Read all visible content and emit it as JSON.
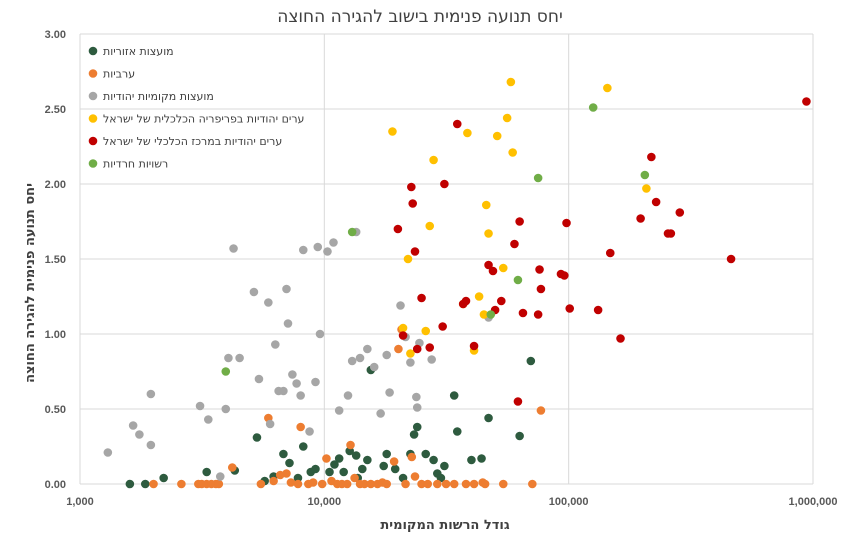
{
  "chart_data": {
    "type": "scatter",
    "title": "יחס תנועה פנימית בישוב להגירה החוצה",
    "xlabel": "גודל הרשות המקומית",
    "ylabel": "יחס תנועה פנימית להגירה החוצה",
    "x_scale": "log",
    "xlim": [
      1000,
      1000000
    ],
    "ylim": [
      0,
      3
    ],
    "x_ticks": [
      1000,
      10000,
      100000,
      1000000
    ],
    "x_tick_labels": [
      "1,000",
      "10,000",
      "100,000",
      "1,000,000"
    ],
    "y_ticks": [
      0,
      0.5,
      1,
      1.5,
      2,
      2.5,
      3
    ],
    "y_tick_labels": [
      "0.00",
      "0.50",
      "1.00",
      "1.50",
      "2.00",
      "2.50",
      "3.00"
    ],
    "grid": true,
    "legend_position": "top-left",
    "series": [
      {
        "name": "מועצות אזוריות",
        "color": "#2e5b3f",
        "points": [
          [
            1600,
            0
          ],
          [
            1850,
            0
          ],
          [
            2200,
            0.04
          ],
          [
            3300,
            0.08
          ],
          [
            4300,
            0.09
          ],
          [
            5300,
            0.31
          ],
          [
            5700,
            0.02
          ],
          [
            6200,
            0.05
          ],
          [
            6800,
            0.2
          ],
          [
            7200,
            0.14
          ],
          [
            7800,
            0.04
          ],
          [
            8200,
            0.25
          ],
          [
            8800,
            0.08
          ],
          [
            9200,
            0.1
          ],
          [
            10500,
            0.08
          ],
          [
            11000,
            0.13
          ],
          [
            11500,
            0.17
          ],
          [
            12000,
            0.08
          ],
          [
            12700,
            0.22
          ],
          [
            13500,
            0.19
          ],
          [
            13700,
            0.04
          ],
          [
            14300,
            0.1
          ],
          [
            15000,
            0.16
          ],
          [
            15500,
            0.76
          ],
          [
            17500,
            0.12
          ],
          [
            18000,
            0.2
          ],
          [
            19500,
            0.1
          ],
          [
            21000,
            0.04
          ],
          [
            22500,
            0.2
          ],
          [
            23300,
            0.33
          ],
          [
            24000,
            0.38
          ],
          [
            26000,
            0.2
          ],
          [
            28000,
            0.16
          ],
          [
            29000,
            0.07
          ],
          [
            30000,
            0.04
          ],
          [
            31000,
            0.12
          ],
          [
            34000,
            0.59
          ],
          [
            35000,
            0.35
          ],
          [
            40000,
            0.16
          ],
          [
            44000,
            0.17
          ],
          [
            47000,
            0.44
          ],
          [
            63000,
            0.32
          ],
          [
            70000,
            0.82
          ]
        ]
      },
      {
        "name": "ערביות",
        "color": "#ed7d31",
        "points": [
          [
            2000,
            0
          ],
          [
            2600,
            0
          ],
          [
            3050,
            0
          ],
          [
            3150,
            0
          ],
          [
            3300,
            0
          ],
          [
            3450,
            0
          ],
          [
            3600,
            0
          ],
          [
            3700,
            0
          ],
          [
            4200,
            0.11
          ],
          [
            5500,
            0
          ],
          [
            5900,
            0.44
          ],
          [
            6200,
            0.02
          ],
          [
            6600,
            0.06
          ],
          [
            7000,
            0.07
          ],
          [
            7300,
            0.01
          ],
          [
            7800,
            0
          ],
          [
            8000,
            0.38
          ],
          [
            8600,
            0
          ],
          [
            9000,
            0.01
          ],
          [
            9800,
            0
          ],
          [
            10200,
            0.17
          ],
          [
            10700,
            0.02
          ],
          [
            11300,
            0
          ],
          [
            11800,
            0
          ],
          [
            12400,
            0
          ],
          [
            12800,
            0.26
          ],
          [
            13300,
            0.04
          ],
          [
            14000,
            0
          ],
          [
            14600,
            0
          ],
          [
            15500,
            0
          ],
          [
            16500,
            0
          ],
          [
            17300,
            0.01
          ],
          [
            18000,
            0
          ],
          [
            19300,
            0.15
          ],
          [
            20100,
            0.9
          ],
          [
            20700,
            1.03
          ],
          [
            21500,
            0
          ],
          [
            22800,
            0.18
          ],
          [
            23500,
            0.05
          ],
          [
            25000,
            0
          ],
          [
            26500,
            0
          ],
          [
            29000,
            0
          ],
          [
            31500,
            0
          ],
          [
            34000,
            0
          ],
          [
            38000,
            0
          ],
          [
            41000,
            0
          ],
          [
            44500,
            0.01
          ],
          [
            45500,
            0
          ],
          [
            54000,
            0
          ],
          [
            71000,
            0
          ],
          [
            77000,
            0.49
          ]
        ]
      },
      {
        "name": "מועצות מקומיות יהודיות",
        "color": "#a6a6a6",
        "points": [
          [
            1300,
            0.21
          ],
          [
            1650,
            0.39
          ],
          [
            1750,
            0.33
          ],
          [
            1950,
            0.6
          ],
          [
            1950,
            0.26
          ],
          [
            3100,
            0.52
          ],
          [
            3350,
            0.43
          ],
          [
            3750,
            0.05
          ],
          [
            3950,
            0.5
          ],
          [
            4050,
            0.84
          ],
          [
            4250,
            1.57
          ],
          [
            4500,
            0.84
          ],
          [
            5150,
            1.28
          ],
          [
            5400,
            0.7
          ],
          [
            5900,
            1.21
          ],
          [
            6000,
            0.4
          ],
          [
            6300,
            0.93
          ],
          [
            6500,
            0.62
          ],
          [
            6800,
            0.62
          ],
          [
            7000,
            1.3
          ],
          [
            7100,
            1.07
          ],
          [
            7400,
            0.73
          ],
          [
            7700,
            0.67
          ],
          [
            8000,
            0.59
          ],
          [
            8200,
            1.56
          ],
          [
            8700,
            0.35
          ],
          [
            9200,
            0.68
          ],
          [
            9400,
            1.58
          ],
          [
            9600,
            1.0
          ],
          [
            10300,
            1.55
          ],
          [
            10900,
            1.61
          ],
          [
            11500,
            0.49
          ],
          [
            12500,
            0.59
          ],
          [
            13000,
            0.82
          ],
          [
            13500,
            1.68
          ],
          [
            14000,
            0.84
          ],
          [
            15000,
            0.9
          ],
          [
            16000,
            0.78
          ],
          [
            17000,
            0.47
          ],
          [
            18000,
            0.86
          ],
          [
            18500,
            0.61
          ],
          [
            20500,
            1.19
          ],
          [
            21500,
            0.98
          ],
          [
            22500,
            0.81
          ],
          [
            23800,
            0.58
          ],
          [
            24000,
            0.51
          ],
          [
            24500,
            0.94
          ],
          [
            27500,
            0.83
          ],
          [
            47000,
            1.11
          ]
        ]
      },
      {
        "name": "ערים יהודיות בפריפריה הכלכלית של ישראל",
        "color": "#ffc000",
        "points": [
          [
            19000,
            2.35
          ],
          [
            21000,
            1.04
          ],
          [
            22000,
            1.5
          ],
          [
            22500,
            0.87
          ],
          [
            26000,
            1.02
          ],
          [
            27000,
            1.72
          ],
          [
            28000,
            2.16
          ],
          [
            37000,
            1.2
          ],
          [
            38500,
            2.34
          ],
          [
            41000,
            0.89
          ],
          [
            43000,
            1.25
          ],
          [
            45000,
            1.13
          ],
          [
            46000,
            1.86
          ],
          [
            47000,
            1.67
          ],
          [
            51000,
            2.32
          ],
          [
            54000,
            1.44
          ],
          [
            56000,
            2.44
          ],
          [
            58000,
            2.68
          ],
          [
            59000,
            2.21
          ],
          [
            144000,
            2.64
          ],
          [
            208000,
            1.97
          ]
        ]
      },
      {
        "name": "ערים יהודיות במרכז הכלכלי של ישראל",
        "color": "#c00000",
        "points": [
          [
            20000,
            1.7
          ],
          [
            21000,
            0.99
          ],
          [
            22700,
            1.98
          ],
          [
            23000,
            1.87
          ],
          [
            23500,
            1.55
          ],
          [
            24000,
            0.9
          ],
          [
            25000,
            1.24
          ],
          [
            27000,
            0.91
          ],
          [
            30500,
            1.05
          ],
          [
            31000,
            2.0
          ],
          [
            35000,
            2.4
          ],
          [
            37000,
            1.2
          ],
          [
            38000,
            1.22
          ],
          [
            41000,
            0.92
          ],
          [
            47000,
            1.46
          ],
          [
            49000,
            1.42
          ],
          [
            50000,
            1.16
          ],
          [
            53000,
            1.22
          ],
          [
            60000,
            1.6
          ],
          [
            62000,
            0.55
          ],
          [
            63000,
            1.75
          ],
          [
            65000,
            1.14
          ],
          [
            75000,
            1.13
          ],
          [
            76000,
            1.43
          ],
          [
            77000,
            1.3
          ],
          [
            93000,
            1.4
          ],
          [
            96000,
            1.39
          ],
          [
            98000,
            1.74
          ],
          [
            101000,
            1.17
          ],
          [
            132000,
            1.16
          ],
          [
            148000,
            1.54
          ],
          [
            163000,
            0.97
          ],
          [
            197000,
            1.77
          ],
          [
            218000,
            2.18
          ],
          [
            228000,
            1.88
          ],
          [
            255000,
            1.67
          ],
          [
            262000,
            1.67
          ],
          [
            285000,
            1.81
          ],
          [
            462000,
            1.5
          ],
          [
            940000,
            2.55
          ]
        ]
      },
      {
        "name": "רשויות חרדיות",
        "color": "#70ad47",
        "points": [
          [
            3950,
            0.75
          ],
          [
            13000,
            1.68
          ],
          [
            48000,
            1.13
          ],
          [
            62000,
            1.36
          ],
          [
            75000,
            2.04
          ],
          [
            126000,
            2.51
          ],
          [
            205000,
            2.06
          ]
        ]
      }
    ]
  }
}
